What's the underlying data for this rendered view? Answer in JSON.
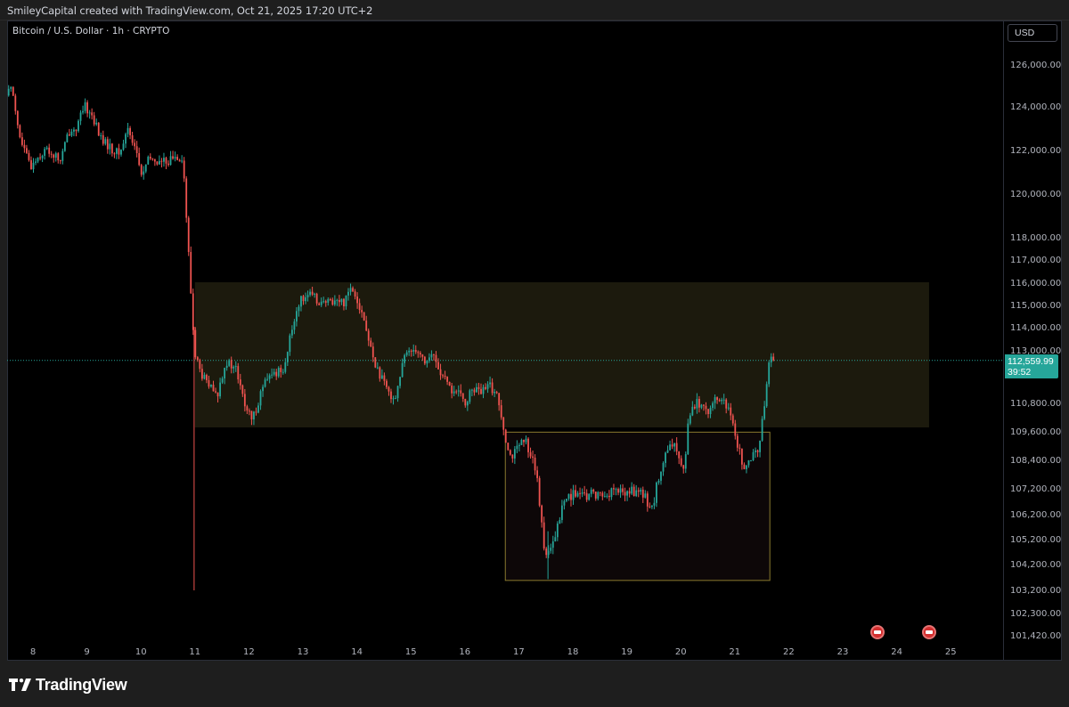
{
  "header": {
    "text": "SmileyCapital created with TradingView.com, Oct 21, 2025 17:20 UTC+2"
  },
  "symbol": {
    "title": "Bitcoin / U.S. Dollar · 1h · CRYPTO"
  },
  "currency": {
    "label": "USD"
  },
  "last_price": {
    "value": "112,559.99",
    "countdown": "39:52"
  },
  "footer": {
    "brand": "TradingView"
  },
  "colors": {
    "up": "#26a69a",
    "down": "#ef5350",
    "zone_upper_fill": "#1c1a0d",
    "zone_lower_fill": "#0d0708",
    "zone_border": "#8a7a2e",
    "price_line": "#26a69a"
  },
  "icons": {
    "event": "us-flag-icon",
    "logo": "tradingview-logo-icon"
  },
  "chart_data": {
    "type": "candlestick",
    "title": "Bitcoin / U.S. Dollar · 1h · CRYPTO",
    "ylim": [
      101100,
      127700
    ],
    "y_ticks": [
      {
        "value": 126000,
        "label": "126,000.00"
      },
      {
        "value": 124000,
        "label": "124,000.00"
      },
      {
        "value": 122000,
        "label": "122,000.00"
      },
      {
        "value": 120000,
        "label": "120,000.00"
      },
      {
        "value": 118000,
        "label": "118,000.00"
      },
      {
        "value": 117000,
        "label": "117,000.00"
      },
      {
        "value": 116000,
        "label": "116,000.00"
      },
      {
        "value": 115000,
        "label": "115,000.00"
      },
      {
        "value": 114000,
        "label": "114,000.00"
      },
      {
        "value": 113000,
        "label": "113,000.00"
      },
      {
        "value": 110800,
        "label": "110,800.00"
      },
      {
        "value": 109600,
        "label": "109,600.00"
      },
      {
        "value": 108400,
        "label": "108,400.00"
      },
      {
        "value": 107200,
        "label": "107,200.00"
      },
      {
        "value": 106200,
        "label": "106,200.00"
      },
      {
        "value": 105200,
        "label": "105,200.00"
      },
      {
        "value": 104200,
        "label": "104,200.00"
      },
      {
        "value": 103200,
        "label": "103,200.00"
      },
      {
        "value": 102300,
        "label": "102,300.00"
      },
      {
        "value": 101420,
        "label": "101,420.00"
      }
    ],
    "x_ticks": [
      "8",
      "9",
      "10",
      "11",
      "12",
      "13",
      "14",
      "15",
      "16",
      "17",
      "18",
      "19",
      "20",
      "21",
      "22",
      "23",
      "24",
      "25"
    ],
    "x_range_days": [
      7.5,
      25.5
    ],
    "last_price": 112559.99,
    "zones": [
      {
        "name": "upper-supply-zone",
        "from_day": 11.0,
        "to_day": 24.6,
        "low": 109750,
        "high": 116000
      },
      {
        "name": "lower-demand-zone",
        "from_day": 16.75,
        "to_day": 21.65,
        "low": 103550,
        "high": 109550
      }
    ],
    "events": [
      {
        "day": 23.65
      },
      {
        "day": 24.6
      }
    ],
    "anchors": [
      [
        7.55,
        124500
      ],
      [
        7.65,
        125000
      ],
      [
        7.8,
        122500
      ],
      [
        8.0,
        121200
      ],
      [
        8.1,
        121600
      ],
      [
        8.3,
        122000
      ],
      [
        8.55,
        121500
      ],
      [
        8.7,
        122800
      ],
      [
        8.85,
        123000
      ],
      [
        9.0,
        124000
      ],
      [
        9.15,
        123500
      ],
      [
        9.3,
        122500
      ],
      [
        9.5,
        122000
      ],
      [
        9.65,
        121800
      ],
      [
        9.8,
        123000
      ],
      [
        9.95,
        122000
      ],
      [
        10.05,
        120800
      ],
      [
        10.2,
        121600
      ],
      [
        10.4,
        121400
      ],
      [
        10.55,
        121500
      ],
      [
        10.7,
        121700
      ],
      [
        10.82,
        121600
      ],
      [
        10.88,
        119000
      ],
      [
        10.93,
        117000
      ],
      [
        10.98,
        115000
      ],
      [
        11.03,
        113000
      ],
      [
        11.15,
        112000
      ],
      [
        11.3,
        111500
      ],
      [
        11.45,
        111000
      ],
      [
        11.6,
        112500
      ],
      [
        11.8,
        112200
      ],
      [
        11.95,
        110800
      ],
      [
        12.1,
        110000
      ],
      [
        12.3,
        111500
      ],
      [
        12.5,
        112000
      ],
      [
        12.7,
        112300
      ],
      [
        12.85,
        114000
      ],
      [
        12.95,
        115000
      ],
      [
        13.1,
        115500
      ],
      [
        13.25,
        115300
      ],
      [
        13.45,
        115000
      ],
      [
        13.6,
        115200
      ],
      [
        13.8,
        115100
      ],
      [
        13.9,
        115800
      ],
      [
        14.0,
        115600
      ],
      [
        14.15,
        114500
      ],
      [
        14.3,
        113000
      ],
      [
        14.45,
        112000
      ],
      [
        14.6,
        111300
      ],
      [
        14.75,
        111000
      ],
      [
        14.9,
        112500
      ],
      [
        15.0,
        113000
      ],
      [
        15.15,
        113100
      ],
      [
        15.3,
        112500
      ],
      [
        15.45,
        112800
      ],
      [
        15.6,
        112000
      ],
      [
        15.75,
        111400
      ],
      [
        15.9,
        111200
      ],
      [
        16.05,
        110800
      ],
      [
        16.2,
        111400
      ],
      [
        16.35,
        111200
      ],
      [
        16.5,
        111500
      ],
      [
        16.62,
        111200
      ],
      [
        16.72,
        110300
      ],
      [
        16.8,
        109300
      ],
      [
        16.9,
        108500
      ],
      [
        17.0,
        108800
      ],
      [
        17.15,
        109200
      ],
      [
        17.3,
        108500
      ],
      [
        17.38,
        107500
      ],
      [
        17.45,
        106000
      ],
      [
        17.52,
        104800
      ],
      [
        17.6,
        104500
      ],
      [
        17.72,
        105300
      ],
      [
        17.85,
        106500
      ],
      [
        17.95,
        106900
      ],
      [
        18.1,
        107000
      ],
      [
        18.25,
        106800
      ],
      [
        18.4,
        107000
      ],
      [
        18.6,
        106900
      ],
      [
        18.8,
        107100
      ],
      [
        19.0,
        107000
      ],
      [
        19.2,
        107100
      ],
      [
        19.4,
        106800
      ],
      [
        19.5,
        106300
      ],
      [
        19.6,
        107300
      ],
      [
        19.75,
        108500
      ],
      [
        19.88,
        109000
      ],
      [
        20.0,
        108700
      ],
      [
        20.1,
        108000
      ],
      [
        20.2,
        110400
      ],
      [
        20.35,
        110800
      ],
      [
        20.55,
        110500
      ],
      [
        20.75,
        111000
      ],
      [
        20.9,
        110600
      ],
      [
        21.02,
        109700
      ],
      [
        21.12,
        108800
      ],
      [
        21.22,
        108000
      ],
      [
        21.32,
        108200
      ],
      [
        21.42,
        108700
      ],
      [
        21.5,
        109000
      ],
      [
        21.58,
        110500
      ],
      [
        21.66,
        112400
      ],
      [
        21.72,
        112560
      ]
    ]
  }
}
